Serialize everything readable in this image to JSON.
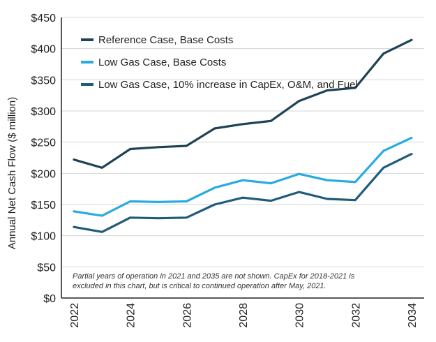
{
  "chart_data": {
    "type": "line",
    "title": "",
    "xlabel": "",
    "ylabel": "Annual Net Cash Flow ($ million)",
    "x": [
      2022,
      2023,
      2024,
      2025,
      2026,
      2027,
      2028,
      2029,
      2030,
      2031,
      2032,
      2033,
      2034
    ],
    "xticks": [
      2022,
      2024,
      2026,
      2028,
      2030,
      2032,
      2034
    ],
    "xtick_labels": [
      "2022",
      "2024",
      "2026",
      "2028",
      "2030",
      "2032",
      "2034"
    ],
    "ylim": [
      0,
      450
    ],
    "yticks": [
      0,
      50,
      100,
      150,
      200,
      250,
      300,
      350,
      400,
      450
    ],
    "ytick_labels": [
      "$0",
      "$50",
      "$100",
      "$150",
      "$200",
      "$250",
      "$300",
      "$350",
      "$400",
      "$450"
    ],
    "grid": true,
    "legend_position": "top-left",
    "series": [
      {
        "name": "Reference Case, Base Costs",
        "color": "#1d4354",
        "values": [
          222,
          209,
          239,
          242,
          244,
          272,
          279,
          284,
          316,
          333,
          337,
          392,
          414
        ]
      },
      {
        "name": "Low Gas Case, Base Costs",
        "color": "#29abe2",
        "values": [
          139,
          132,
          155,
          154,
          155,
          177,
          189,
          184,
          199,
          189,
          186,
          236,
          257
        ]
      },
      {
        "name": "Low Gas Case, 10% increase in CapEx, O&M, and Fuel",
        "color": "#1f5c7a",
        "values": [
          114,
          106,
          129,
          128,
          129,
          150,
          161,
          156,
          170,
          159,
          157,
          209,
          231
        ]
      }
    ],
    "annotation": "Partial years of operation in 2021 and 2035 are not shown.  CapEx for 2018-2021 is excluded in this chart, but is critical to continued operation after May, 2021."
  }
}
